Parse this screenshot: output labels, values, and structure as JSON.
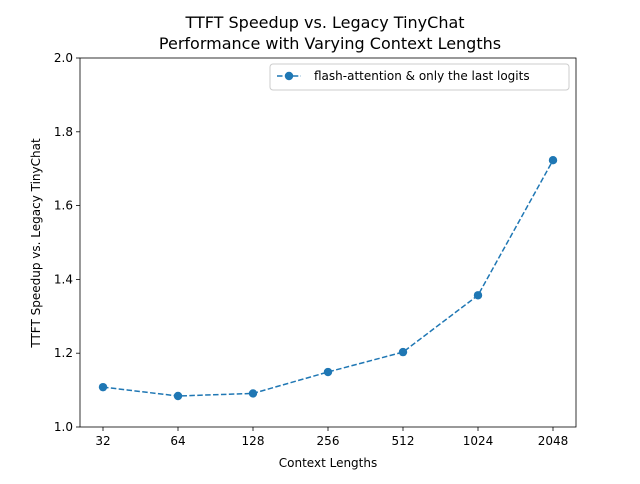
{
  "chart_data": {
    "type": "line",
    "title": "TTFT Speedup vs. Legacy TinyChat",
    "subtitle": "Performance with Varying Context Lengths",
    "xlabel": "Context Lengths",
    "ylabel": "TTFT Speedup vs. Legacy TinyChat",
    "categories": [
      "32",
      "64",
      "128",
      "256",
      "512",
      "1024",
      "2048"
    ],
    "series": [
      {
        "name": "flash-attention & only the last logits",
        "values": [
          1.108,
          1.084,
          1.091,
          1.149,
          1.203,
          1.357,
          1.723
        ],
        "color": "#1f77b4",
        "line_style": "dashed",
        "marker": "circle"
      }
    ],
    "ylim": [
      1.0,
      2.0
    ],
    "yticks": [
      "1.0",
      "1.2",
      "1.4",
      "1.6",
      "1.8",
      "2.0"
    ],
    "grid": false,
    "legend_position": "top-right"
  }
}
